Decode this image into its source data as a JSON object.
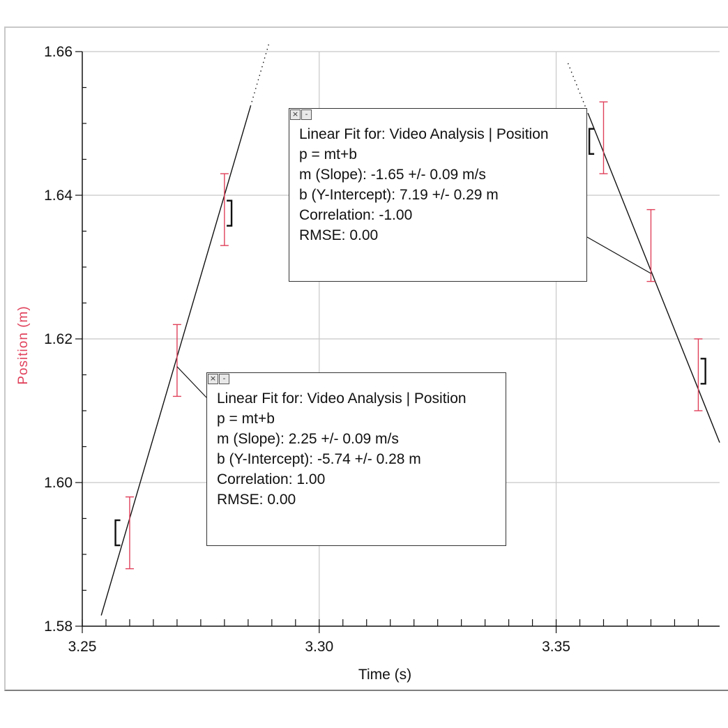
{
  "chart_data": {
    "type": "scatter",
    "xlabel": "Time (s)",
    "ylabel": "Position (m)",
    "xlim": [
      3.25,
      3.3845
    ],
    "ylim": [
      1.58,
      1.66
    ],
    "x_major_ticks": [
      3.25,
      3.3,
      3.35
    ],
    "x_tick_labels": [
      "3.25",
      "3.30",
      "3.35"
    ],
    "y_major_ticks": [
      1.58,
      1.6,
      1.62,
      1.64,
      1.66
    ],
    "y_tick_labels": [
      "1.58",
      "1.60",
      "1.62",
      "1.64",
      "1.66"
    ],
    "grid": true,
    "series": [
      {
        "color": "#e0405a",
        "points": [
          {
            "x": 3.26,
            "y": 1.593,
            "err": 0.005
          },
          {
            "x": 3.27,
            "y": 1.617,
            "err": 0.005
          },
          {
            "x": 3.28,
            "y": 1.638,
            "err": 0.005
          },
          {
            "x": 3.36,
            "y": 1.648,
            "err": 0.005
          },
          {
            "x": 3.37,
            "y": 1.633,
            "err": 0.005
          },
          {
            "x": 3.38,
            "y": 1.615,
            "err": 0.005
          }
        ]
      }
    ],
    "fits": [
      {
        "slope": 2.25,
        "intercept": -5.74,
        "solid_range": [
          3.254,
          3.2855
        ],
        "dotted_range": [
          3.2855,
          3.2895
        ],
        "bracket_start": 3.257,
        "bracket_end": 3.2815,
        "box": {
          "lines": [
            "Linear Fit for:  Video Analysis | Position",
            "p = mt+b",
            "m (Slope): 2.25 +/- 0.09 m/s",
            "b (Y-Intercept): -5.74 +/- 0.28 m",
            "Correlation: 1.00",
            "RMSE: 0.00"
          ]
        }
      },
      {
        "slope": -1.65,
        "intercept": 7.19,
        "solid_range": [
          3.3567,
          3.3845
        ],
        "dotted_range": [
          3.3525,
          3.3567
        ],
        "bracket_start": 3.357,
        "bracket_end": 3.3815,
        "box": {
          "lines": [
            "Linear Fit for:  Video Analysis | Position",
            "p = mt+b",
            "m (Slope): -1.65 +/- 0.09 m/s",
            "b (Y-Intercept): 7.19 +/- 0.29 m",
            "Correlation: -1.00",
            "RMSE: 0.00"
          ]
        }
      }
    ]
  },
  "fit_box_controls": {
    "close_glyph": "×",
    "minimize_glyph": "-"
  }
}
